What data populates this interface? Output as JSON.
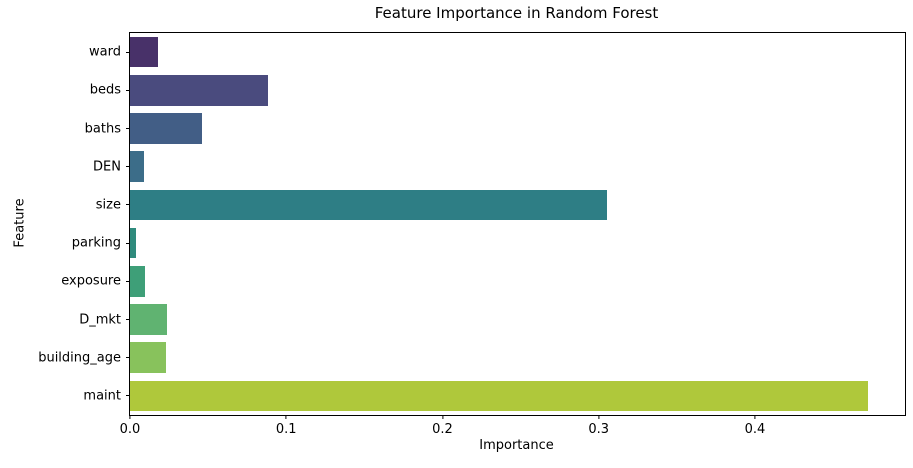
{
  "chart_data": {
    "type": "bar",
    "orientation": "horizontal",
    "title": "Feature Importance in Random Forest",
    "xlabel": "Importance",
    "ylabel": "Feature",
    "categories": [
      "ward",
      "beds",
      "baths",
      "DEN",
      "size",
      "parking",
      "exposure",
      "D_mkt",
      "building_age",
      "maint"
    ],
    "values": [
      0.018,
      0.088,
      0.046,
      0.009,
      0.305,
      0.004,
      0.0095,
      0.0235,
      0.023,
      0.472
    ],
    "bar_colors": [
      "#483169",
      "#4a4b7e",
      "#425e86",
      "#3c6d89",
      "#2e7e85",
      "#2f8b7d",
      "#3e9f78",
      "#60b371",
      "#88c25c",
      "#afc83b"
    ],
    "xlim": [
      0,
      0.496
    ],
    "xticks": [
      0,
      0.1,
      0.2,
      0.3,
      0.4
    ],
    "xtick_labels": [
      "0.0",
      "0.1",
      "0.2",
      "0.3",
      "0.4"
    ],
    "grid": false,
    "legend_position": "none",
    "accent_colors": {
      "spine": "#000000",
      "text": "#000000",
      "background": "#ffffff"
    }
  }
}
